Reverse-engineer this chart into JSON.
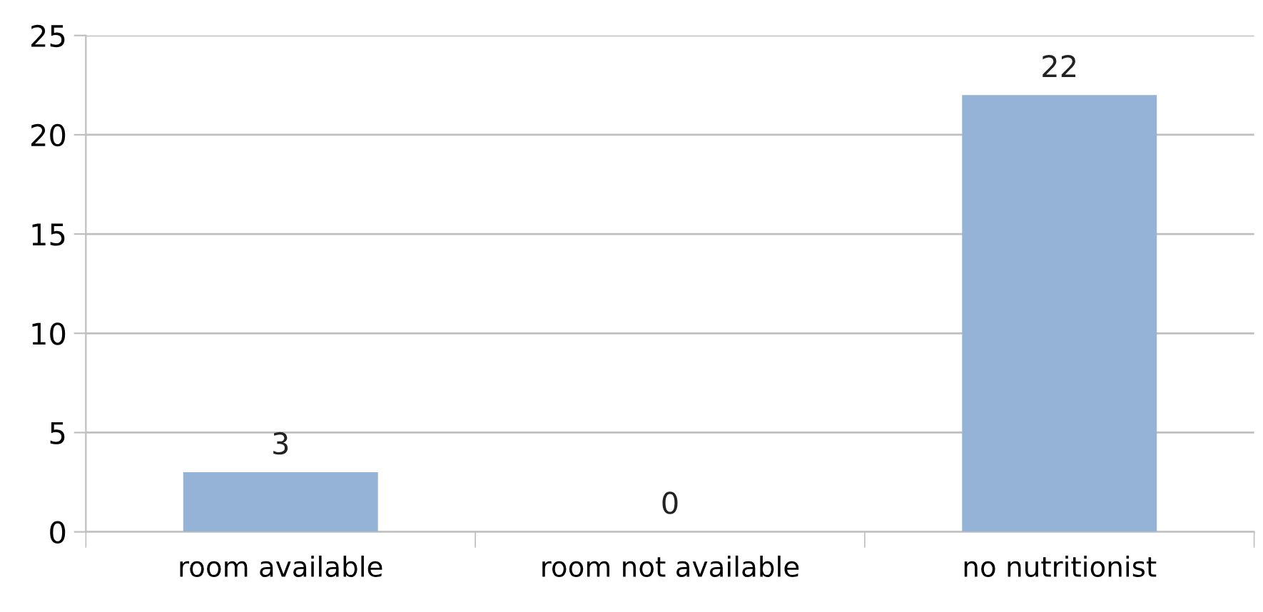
{
  "chart_data": {
    "type": "bar",
    "categories": [
      "room available",
      "room not available",
      "no nutritionist"
    ],
    "values": [
      3,
      0,
      22
    ],
    "color": "#95b3d7",
    "ylim": [
      0,
      25
    ],
    "yticks": [
      0,
      5,
      10,
      15,
      20,
      25
    ],
    "grid": "y",
    "data_labels": true,
    "legend": false
  }
}
